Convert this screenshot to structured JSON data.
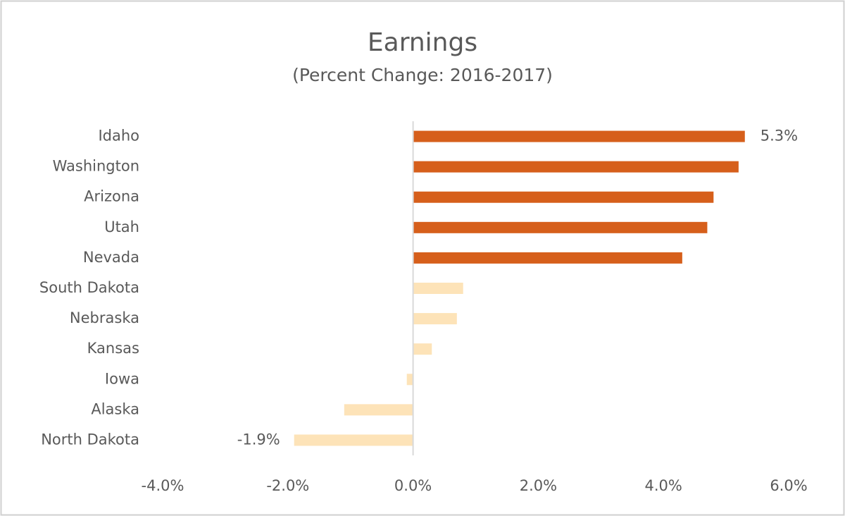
{
  "chart_data": {
    "type": "hbar",
    "title": "Earnings",
    "subtitle": "(Percent Change: 2016-2017)",
    "categories": [
      "Idaho",
      "Washington",
      "Arizona",
      "Utah",
      "Nevada",
      "South Dakota",
      "Nebraska",
      "Kansas",
      "Iowa",
      "Alaska",
      "North Dakota"
    ],
    "values": [
      5.3,
      5.2,
      4.8,
      4.7,
      4.3,
      0.8,
      0.7,
      0.3,
      -0.1,
      -1.1,
      -1.9
    ],
    "value_labels": [
      "5.3%",
      null,
      null,
      null,
      null,
      null,
      null,
      null,
      null,
      null,
      "-1.9%"
    ],
    "colors": [
      "#d65f1b",
      "#d65f1b",
      "#d65f1b",
      "#d65f1b",
      "#d65f1b",
      "#fde3b8",
      "#fde3b8",
      "#fde3b8",
      "#fde3b8",
      "#fde3b8",
      "#fde3b8"
    ],
    "xlim": [
      -4,
      6
    ],
    "xticks": [
      {
        "value": -4,
        "label": "-4.0%"
      },
      {
        "value": -2,
        "label": "-2.0%"
      },
      {
        "value": 0,
        "label": "0.0%"
      },
      {
        "value": 2,
        "label": "2.0%"
      },
      {
        "value": 4,
        "label": "4.0%"
      },
      {
        "value": 6,
        "label": "6.0%"
      }
    ],
    "grid": false
  }
}
